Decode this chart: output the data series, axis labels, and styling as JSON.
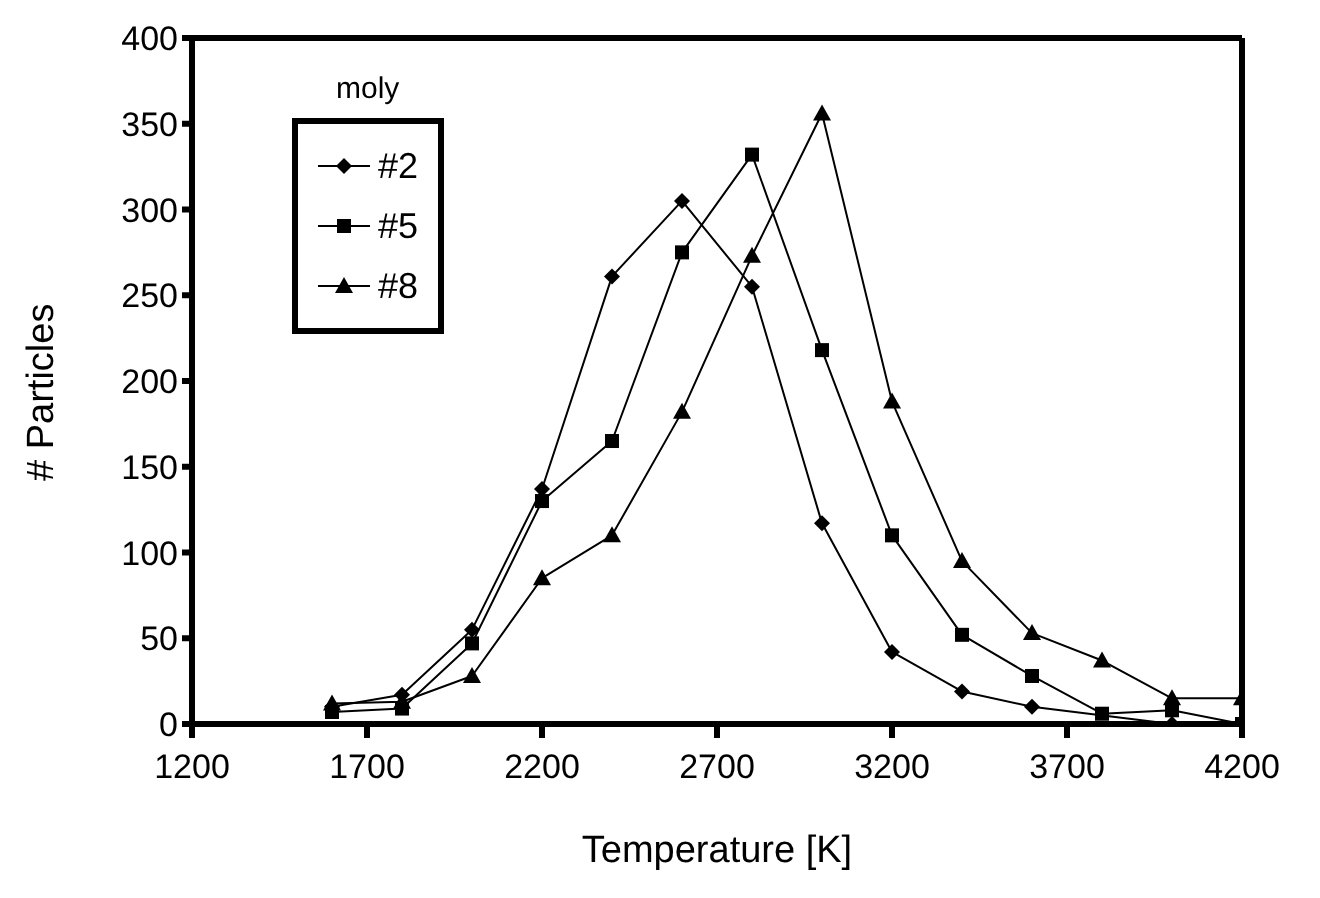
{
  "chart_data": {
    "type": "line",
    "xlabel": "Temperature [K]",
    "ylabel": "# Particles",
    "legend_title": "moly",
    "legend": "top left",
    "grid": false,
    "x": [
      1600,
      1800,
      2000,
      2200,
      2400,
      2600,
      2800,
      3000,
      3200,
      3400,
      3600,
      3800,
      4000,
      4200
    ],
    "xlim": [
      1200,
      4200
    ],
    "xticks": [
      1200,
      1700,
      2200,
      2700,
      3200,
      3700,
      4200
    ],
    "ylim": [
      0,
      400
    ],
    "yticks": [
      0,
      50,
      100,
      150,
      200,
      250,
      300,
      350,
      400
    ],
    "series": [
      {
        "name": "#2",
        "color": "#000000",
        "marker": "diamond",
        "values": [
          10,
          17,
          55,
          137,
          261,
          305,
          255,
          117,
          42,
          19,
          10,
          null,
          0,
          0
        ]
      },
      {
        "name": "#5",
        "color": "#000000",
        "marker": "square",
        "values": [
          7,
          9,
          47,
          130,
          165,
          275,
          332,
          218,
          110,
          52,
          28,
          6,
          8,
          0
        ]
      },
      {
        "name": "#8",
        "color": "#000000",
        "marker": "triangle",
        "values": [
          12,
          13,
          28,
          85,
          110,
          182,
          273,
          356,
          188,
          95,
          53,
          37,
          15,
          15
        ]
      }
    ]
  }
}
